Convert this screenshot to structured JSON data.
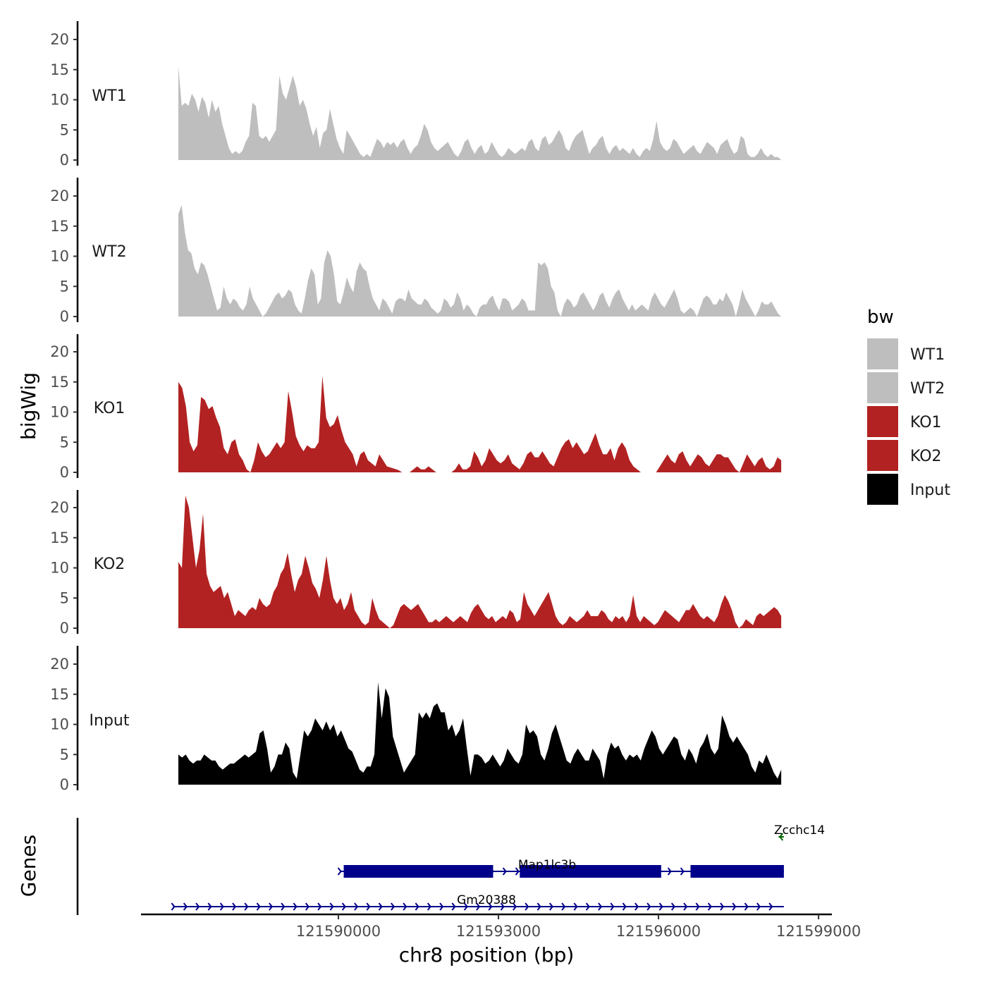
{
  "chart_data": {
    "type": "area",
    "y_axis_title": "bigWig",
    "genes_axis_title": "Genes",
    "x_axis_title": "chr8 position (bp)",
    "x_range": [
      121587000,
      121598300
    ],
    "x_axis_limits": [
      121586300,
      121599250
    ],
    "x_ticks": [
      121590000,
      121593000,
      121596000,
      121599000
    ],
    "x_tick_labels": [
      "121590000",
      "121593000",
      "121596000",
      "121599000"
    ],
    "ylim": [
      0,
      22.5
    ],
    "y_ticks": [
      0,
      5,
      10,
      15,
      20
    ],
    "y_tick_labels": [
      "0",
      "5",
      "10",
      "15",
      "20"
    ],
    "legend": {
      "title": "bw",
      "position": "right",
      "items": [
        {
          "label": "WT1",
          "color": "#bebebe"
        },
        {
          "label": "WT2",
          "color": "#bebebe"
        },
        {
          "label": "KO1",
          "color": "#b22222"
        },
        {
          "label": "KO2",
          "color": "#b22222"
        },
        {
          "label": "Input",
          "color": "#000000"
        }
      ]
    },
    "series": [
      {
        "name": "WT1",
        "color": "#bebebe",
        "values": [
          15.5,
          9,
          9.5,
          9,
          11,
          10,
          8,
          10.5,
          9.5,
          7,
          10,
          8,
          9,
          6,
          4,
          2,
          1,
          1.5,
          1,
          1.5,
          3,
          4,
          9.5,
          9,
          4,
          3.5,
          4,
          3,
          4,
          5,
          14,
          11,
          10,
          12,
          14,
          12,
          9,
          10,
          8.5,
          6,
          4,
          5.5,
          2,
          4.5,
          5,
          8.5,
          6,
          3.5,
          2,
          1,
          5,
          4,
          3,
          2,
          1,
          0.5,
          1,
          0.5,
          2,
          3.5,
          3,
          2,
          3,
          2.5,
          3,
          2,
          3,
          3.5,
          2,
          1,
          2,
          2.5,
          4,
          6,
          5,
          3,
          2,
          1.5,
          2,
          2.5,
          3,
          2,
          1,
          0.5,
          1.5,
          3,
          3.5,
          2,
          1,
          2,
          2.5,
          1,
          1.5,
          3,
          2,
          1,
          0.5,
          1,
          2,
          1.5,
          1,
          1.5,
          2,
          1.5,
          3,
          3.5,
          2,
          1.5,
          3.5,
          4,
          2.5,
          3,
          4,
          5,
          4,
          2,
          1.5,
          3,
          4,
          4.5,
          5,
          3,
          1,
          2,
          2.5,
          3.5,
          4,
          2,
          1,
          2,
          2.5,
          1.5,
          2,
          1.5,
          1,
          2,
          1,
          0.5,
          1.5,
          2,
          1.5,
          3.5,
          6.5,
          3,
          2,
          1.5,
          2,
          3.5,
          3,
          2,
          1,
          1.5,
          2,
          2.5,
          1.5,
          1,
          2,
          3,
          2.5,
          2,
          1,
          2.5,
          3,
          3.5,
          2,
          1,
          1.5,
          4,
          3.5,
          1,
          0.5,
          0.5,
          1,
          2,
          1,
          0.5,
          1,
          0.5,
          0.5,
          0
        ]
      },
      {
        "name": "WT2",
        "color": "#bebebe",
        "values": [
          17,
          18.5,
          14,
          11,
          10.5,
          8,
          7,
          9,
          8.5,
          7,
          5,
          3,
          1,
          1.5,
          5,
          3,
          2,
          3,
          2.5,
          1.5,
          1,
          2,
          5,
          3,
          2,
          1,
          0,
          0.5,
          1.5,
          2.5,
          3.5,
          4,
          3,
          3.5,
          4.5,
          4,
          2,
          1,
          0.5,
          3,
          6,
          8,
          7,
          2,
          3,
          9,
          11,
          10,
          7,
          2.5,
          2,
          4,
          6.5,
          5,
          4,
          7.5,
          9,
          8,
          7.5,
          5,
          3,
          2,
          1,
          3,
          2.5,
          1.5,
          0.5,
          2.5,
          3,
          3,
          2.5,
          4.5,
          3,
          2.5,
          2,
          2,
          3,
          2.5,
          1.5,
          1,
          0.5,
          1,
          3,
          2.5,
          1.5,
          2,
          4,
          3,
          1,
          2,
          1.5,
          0.5,
          0,
          1.5,
          2,
          2,
          3,
          3.5,
          2,
          1,
          3,
          3,
          2.5,
          1,
          1.5,
          2,
          3,
          2.5,
          1,
          1,
          1,
          9,
          8.5,
          9,
          8,
          5,
          4,
          1,
          0,
          2,
          3,
          2.5,
          1.5,
          2,
          3.5,
          4,
          3,
          2,
          1,
          2,
          3.5,
          4,
          2.5,
          1.5,
          3,
          4,
          4.5,
          3,
          2,
          1,
          2,
          1,
          1.5,
          2,
          1.5,
          1,
          3,
          4,
          3,
          2,
          1.5,
          2.5,
          3.5,
          4.5,
          3,
          1,
          0.5,
          1,
          1.5,
          1,
          0,
          1.5,
          3,
          3.5,
          3,
          2,
          2,
          3,
          2.5,
          4,
          3,
          2,
          0,
          2,
          4.5,
          3,
          2,
          1,
          0,
          1,
          2.5,
          2,
          2,
          2.5,
          1.5,
          0.5,
          0
        ]
      },
      {
        "name": "KO1",
        "color": "#b22222",
        "values": [
          15,
          14,
          11,
          5,
          3.5,
          4.5,
          12.5,
          12,
          10.5,
          11,
          9,
          7.5,
          4,
          3,
          5,
          5.5,
          3,
          2,
          0.5,
          0,
          2,
          5,
          3.5,
          2.5,
          3,
          4,
          5,
          4,
          5,
          13.5,
          10,
          6,
          4.5,
          3.5,
          4.5,
          4,
          4,
          5,
          16,
          9,
          7.5,
          8,
          9.5,
          7,
          5,
          4,
          3,
          1,
          3,
          3.5,
          2,
          1.5,
          1,
          3,
          2,
          1,
          0.8,
          0.6,
          0.4,
          0,
          0,
          0,
          0.5,
          1,
          0.5,
          0.5,
          1,
          0.5,
          0,
          0,
          0,
          0,
          0,
          0.5,
          1.5,
          0.5,
          0.5,
          1,
          3.5,
          2.5,
          1,
          2,
          4,
          3,
          2,
          1.5,
          2,
          3,
          1.5,
          1,
          0.5,
          1.5,
          3,
          3.5,
          2.5,
          2.5,
          3.5,
          2.5,
          1.5,
          1,
          2.5,
          4,
          5,
          5.5,
          4,
          5,
          4,
          3,
          3.5,
          5,
          6.5,
          4.5,
          3,
          3,
          4,
          2,
          4,
          5,
          4,
          2,
          1,
          0.5,
          0,
          0,
          0,
          0,
          0,
          1,
          2,
          3,
          2,
          1.5,
          3,
          3.5,
          2,
          1,
          2,
          3,
          2.5,
          1.5,
          1,
          2,
          3,
          3,
          2.5,
          2.5,
          1.5,
          0.5,
          0,
          1.5,
          3,
          2,
          1,
          2,
          2.5,
          1,
          0.5,
          1,
          2.5,
          2
        ]
      },
      {
        "name": "KO2",
        "color": "#b22222",
        "values": [
          11,
          10,
          22,
          20,
          15,
          10,
          13,
          19,
          9,
          7,
          6,
          6.5,
          7,
          5,
          6,
          4,
          2,
          3,
          2.5,
          2,
          3,
          3.5,
          3,
          5,
          4,
          3.5,
          4,
          6,
          7,
          9,
          10,
          12.5,
          9,
          6,
          8,
          9,
          12,
          10,
          7.5,
          6.5,
          5,
          8,
          12,
          8,
          5,
          4,
          5,
          3,
          4,
          6,
          3,
          2,
          1,
          0.5,
          1,
          5,
          3,
          1.5,
          1,
          0.5,
          0,
          0.5,
          2,
          3.5,
          4,
          3.5,
          3,
          3.5,
          4,
          3,
          2,
          1,
          1,
          1.5,
          1,
          1.5,
          2,
          1.5,
          1,
          1.5,
          2,
          1.5,
          1,
          2.5,
          3.5,
          4,
          3,
          2,
          1.5,
          2,
          1,
          1.5,
          2,
          1.5,
          3,
          2.5,
          1,
          1.5,
          6,
          4,
          3,
          2,
          3,
          4,
          5,
          6,
          4,
          2,
          1,
          0.5,
          1,
          2,
          1.5,
          1,
          1.5,
          2,
          3,
          2,
          2,
          2,
          3,
          2.5,
          1.5,
          1,
          2,
          1.5,
          2,
          1,
          2,
          5.5,
          2,
          1,
          2,
          1.5,
          1,
          0.5,
          1,
          2,
          3,
          2.5,
          2,
          1.5,
          1,
          2,
          3,
          3,
          4,
          3,
          2,
          1.5,
          2,
          1.5,
          1,
          2,
          4,
          5.5,
          4.5,
          3,
          1,
          0,
          0.5,
          1.5,
          1,
          0.5,
          2,
          2.5,
          2,
          2.5,
          3,
          3.5,
          3,
          2
        ]
      },
      {
        "name": "Input",
        "color": "#000000",
        "values": [
          5,
          4.5,
          5,
          4,
          3.5,
          4,
          4,
          5,
          4.5,
          4,
          4,
          3,
          2.5,
          3,
          3.5,
          3.5,
          4,
          4.5,
          5,
          4.5,
          5,
          5.5,
          8.5,
          9,
          6,
          2,
          3,
          5,
          5,
          7,
          6,
          2,
          1,
          5,
          9,
          8,
          9,
          11,
          10,
          9,
          10.5,
          9,
          10,
          8,
          9,
          7.5,
          6,
          5.5,
          4,
          2.5,
          2,
          3,
          3,
          5,
          17,
          11,
          16,
          14.5,
          8,
          6,
          4,
          2,
          3,
          4,
          5,
          12,
          11,
          12,
          11,
          13,
          13.5,
          12,
          12,
          9,
          10,
          8,
          9,
          11,
          6,
          1.5,
          5,
          5,
          4.5,
          3.5,
          4,
          5,
          4,
          3,
          4,
          6,
          5,
          4,
          3.5,
          5,
          10,
          8.5,
          9,
          8,
          5,
          4,
          6,
          8.5,
          10,
          8,
          6,
          4,
          3.5,
          5,
          6,
          5,
          4,
          4,
          6,
          5,
          4,
          1,
          5,
          7,
          6,
          6.5,
          5,
          4,
          5,
          4.5,
          5,
          4,
          6,
          7.5,
          9,
          8,
          6,
          5,
          6,
          7,
          8,
          7.5,
          5,
          4,
          6,
          5,
          3.5,
          6,
          7,
          8.5,
          6,
          5,
          6,
          11.5,
          10,
          8,
          7,
          8,
          7,
          6,
          5,
          3,
          2,
          4,
          3.5,
          5,
          3.5,
          2,
          1,
          2.5
        ]
      }
    ],
    "genes_track": {
      "genes": [
        {
          "name": "Zcchc14",
          "color": "#006400",
          "strand": "-",
          "start": 121598250,
          "end": 121598350
        },
        {
          "name": "Map1lc3b",
          "color": "#00008b",
          "strand": "+",
          "start": 121590100,
          "end": 121598350,
          "exons": [
            [
              121590100,
              121592900
            ],
            [
              121593400,
              121596050
            ],
            [
              121596600,
              121598350
            ]
          ]
        },
        {
          "name": "Gm20388",
          "color": "#00008b",
          "strand": "+",
          "start": 121586900,
          "end": 121598350
        }
      ]
    }
  }
}
